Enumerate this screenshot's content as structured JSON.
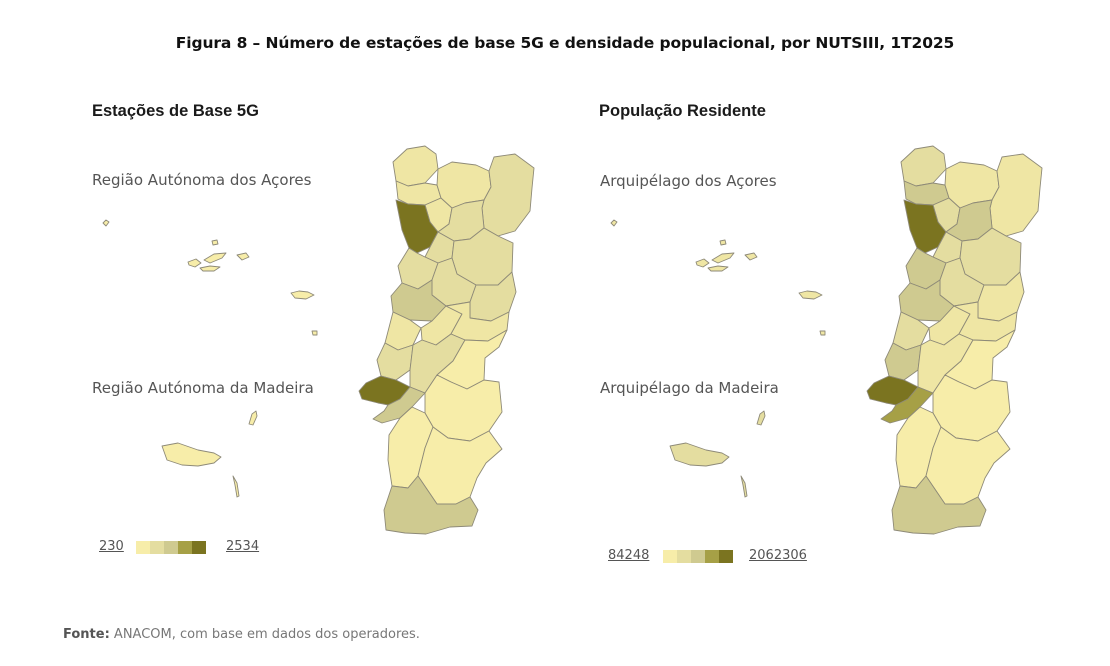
{
  "figure_title": "Figura 8 – Número de estações de base 5G e densidade populacional, por NUTSIII, 1T2025",
  "source": {
    "label": "Fonte:",
    "text": "ANACOM, com base em dados dos operadores."
  },
  "colors": {
    "scale": [
      "#f7eda9",
      "#efe6a4",
      "#e4dda0",
      "#cfca90",
      "#a6a046",
      "#7b7420"
    ],
    "border": "#8e8a78"
  },
  "panels": [
    {
      "title": "Estações de Base 5G",
      "label_acores": "Região Autónoma dos Açores",
      "label_madeira": "Região Autónoma da Madeira",
      "legend_min": "230",
      "legend_max": "2534",
      "shades": {
        "minho": 1,
        "cavado": 1,
        "ave": 1,
        "altotamega": 1,
        "terras": 2,
        "porto": 5,
        "tamega": 2,
        "sousa": 2,
        "douro": 2,
        "aveiro": 2,
        "coimbra": 3,
        "viseu": 2,
        "beiras": 2,
        "leiria": 1,
        "medio": 1,
        "beiraBaixa": 1,
        "oeste": 2,
        "leziria": 2,
        "lisboa": 5,
        "setubal": 3,
        "altoAlentejo": 0,
        "alentejoCentral": 0,
        "alentejoLitoral": 0,
        "baixoAlentejo": 0,
        "algarve": 3,
        "azores": 0,
        "madeira": 0
      }
    },
    {
      "title": "População Residente",
      "label_acores": "Arquipélago dos Açores",
      "label_madeira": "Arquipélago da Madeira",
      "legend_min": "84248",
      "legend_max": "2062306",
      "shades": {
        "minho": 2,
        "cavado": 3,
        "ave": 2,
        "altotamega": 1,
        "terras": 1,
        "porto": 5,
        "tamega": 3,
        "sousa": 2,
        "douro": 2,
        "aveiro": 3,
        "coimbra": 3,
        "viseu": 2,
        "beiras": 1,
        "leiria": 2,
        "medio": 1,
        "beiraBaixa": 1,
        "oeste": 3,
        "leziria": 1,
        "lisboa": 5,
        "setubal": 4,
        "altoAlentejo": 0,
        "alentejoCentral": 0,
        "alentejoLitoral": 0,
        "baixoAlentejo": 0,
        "algarve": 3,
        "azores": 1,
        "madeira": 2
      }
    }
  ]
}
